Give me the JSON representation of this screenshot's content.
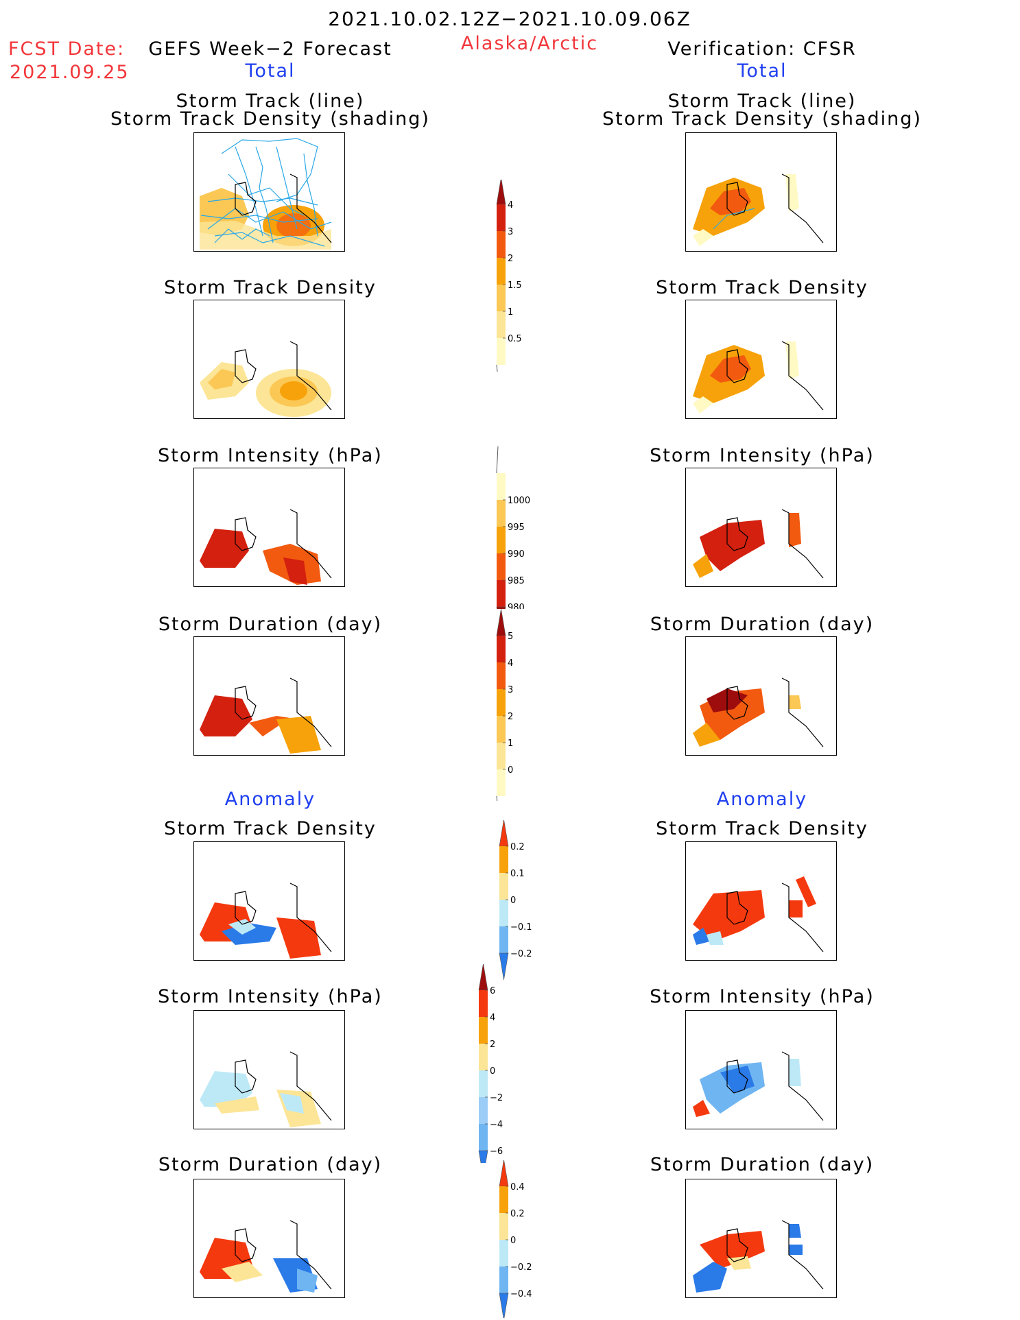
{
  "header": {
    "period": "2021.10.02.12Z−2021.10.09.06Z",
    "region": "Alaska/Arctic",
    "fcst_label": "FCST Date:",
    "fcst_date": "2021.09.25",
    "left_title": "GEFS Week−2 Forecast",
    "right_title": "Verification: CFSR",
    "left_section": "Total",
    "right_section": "Total"
  },
  "anomaly_label": "Anomaly",
  "panels": {
    "track_line": "Storm Track (line)",
    "track_density_shading": "Storm Track Density (shading)",
    "track_density": "Storm Track Density",
    "intensity": "Storm Intensity (hPa)",
    "duration": "Storm Duration (day)"
  },
  "colorbars": {
    "track_density": {
      "ticks": [
        "4",
        "3",
        "2",
        "1.5",
        "1",
        "0.5"
      ],
      "colors": [
        "#9e0d0d",
        "#d4200f",
        "#f25a0f",
        "#f7a20a",
        "#fbc855",
        "#fce596",
        "#fff9c4"
      ]
    },
    "intensity": {
      "ticks": [
        "1000",
        "995",
        "990",
        "985",
        "980"
      ],
      "colors": [
        "#fff9c4",
        "#fbc855",
        "#f7a20a",
        "#f25a0f",
        "#d4200f",
        "#9e0d0d"
      ]
    },
    "duration": {
      "ticks": [
        "5",
        "4",
        "3",
        "2",
        "1",
        "0"
      ],
      "colors": [
        "#9e0d0d",
        "#d4200f",
        "#f25a0f",
        "#f7a20a",
        "#fbc855",
        "#fce596",
        "#fff9c4"
      ]
    },
    "anom_density": {
      "ticks": [
        "0.2",
        "0.1",
        "0",
        "−0.1",
        "−0.2"
      ],
      "colors": [
        "#f5390f",
        "#f7a20a",
        "#fce596",
        "#bde9f7",
        "#6fb5f2",
        "#2a7ae8"
      ]
    },
    "anom_intensity": {
      "ticks": [
        "6",
        "4",
        "2",
        "0",
        "−2",
        "−4",
        "−6"
      ],
      "colors": [
        "#9e0d0d",
        "#f5390f",
        "#f7a20a",
        "#fce596",
        "#bde9f7",
        "#9ccdf7",
        "#6fb5f2",
        "#2a7ae8"
      ]
    },
    "anom_duration": {
      "ticks": [
        "0.4",
        "0.2",
        "0",
        "−0.2",
        "−0.4"
      ],
      "colors": [
        "#f5390f",
        "#f7a20a",
        "#fce596",
        "#bde9f7",
        "#6fb5f2",
        "#2a7ae8"
      ]
    }
  }
}
